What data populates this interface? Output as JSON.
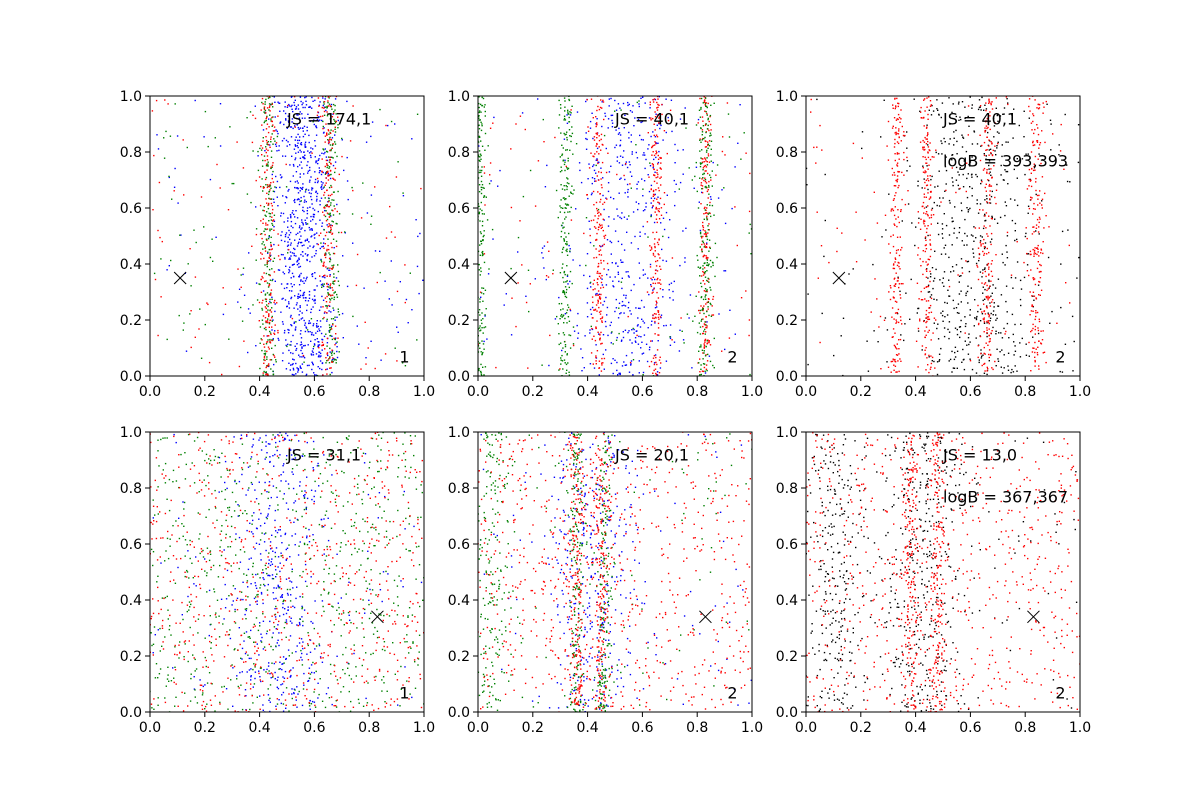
{
  "figure": {
    "axis_tick_labels": [
      "0.0",
      "0.2",
      "0.4",
      "0.6",
      "0.8",
      "1.0"
    ]
  },
  "chart_data": [
    {
      "type": "scatter",
      "xlim": [
        0,
        1
      ],
      "ylim": [
        0,
        1
      ],
      "xticks": [
        0,
        0.2,
        0.4,
        0.6,
        0.8,
        1.0
      ],
      "yticks": [
        0,
        0.2,
        0.4,
        0.6,
        0.8,
        1.0
      ],
      "grid": false,
      "annotations": [
        {
          "text": "JS = 174,1",
          "x": 0.5,
          "y": 0.92
        }
      ],
      "panel_label": {
        "text": "1",
        "x": 0.91,
        "y": 0.07
      },
      "marker_x": {
        "x": 0.11,
        "y": 0.35
      },
      "series": [
        {
          "color": "#0000ff",
          "density": "high",
          "bands": [
            {
              "center": 0.56,
              "width": 0.06
            }
          ]
        },
        {
          "color": "#008000",
          "bands": [
            {
              "center": 0.43,
              "width": 0.015
            },
            {
              "center": 0.66,
              "width": 0.015
            }
          ]
        },
        {
          "color": "#ff0000",
          "bands": [
            {
              "center": 0.43,
              "width": 0.015
            },
            {
              "center": 0.65,
              "width": 0.015
            }
          ]
        }
      ]
    },
    {
      "type": "scatter",
      "xlim": [
        0,
        1
      ],
      "ylim": [
        0,
        1
      ],
      "xticks": [
        0,
        0.2,
        0.4,
        0.6,
        0.8,
        1.0
      ],
      "yticks": [
        0,
        0.2,
        0.4,
        0.6,
        0.8,
        1.0
      ],
      "grid": false,
      "annotations": [
        {
          "text": "JS = 40,1",
          "x": 0.5,
          "y": 0.92
        }
      ],
      "panel_label": {
        "text": "2",
        "x": 0.91,
        "y": 0.07
      },
      "marker_x": {
        "x": 0.12,
        "y": 0.35
      },
      "series": [
        {
          "color": "#0000ff",
          "bands": [
            {
              "center": 0.55,
              "width": 0.1
            }
          ]
        },
        {
          "color": "#ff0000",
          "bands": [
            {
              "center": 0.44,
              "width": 0.012
            },
            {
              "center": 0.65,
              "width": 0.012
            },
            {
              "center": 0.83,
              "width": 0.01
            }
          ]
        },
        {
          "color": "#008000",
          "bands": [
            {
              "center": 0.01,
              "width": 0.01
            },
            {
              "center": 0.32,
              "width": 0.012
            },
            {
              "center": 0.83,
              "width": 0.015
            }
          ]
        }
      ]
    },
    {
      "type": "scatter",
      "xlim": [
        0,
        1
      ],
      "ylim": [
        0,
        1
      ],
      "xticks": [
        0,
        0.2,
        0.4,
        0.6,
        0.8,
        1.0
      ],
      "yticks": [
        0,
        0.2,
        0.4,
        0.6,
        0.8,
        1.0
      ],
      "grid": false,
      "annotations": [
        {
          "text": "JS = 40,1",
          "x": 0.5,
          "y": 0.92
        },
        {
          "text": "logB = 393,393",
          "x": 0.5,
          "y": 0.77
        }
      ],
      "panel_label": {
        "text": "2",
        "x": 0.91,
        "y": 0.07
      },
      "marker_x": {
        "x": 0.12,
        "y": 0.35
      },
      "series": [
        {
          "color": "#000000",
          "bands": [
            {
              "center": 0.62,
              "width": 0.12
            }
          ]
        },
        {
          "color": "#ff0000",
          "bands": [
            {
              "center": 0.33,
              "width": 0.012
            },
            {
              "center": 0.44,
              "width": 0.012
            },
            {
              "center": 0.66,
              "width": 0.015
            },
            {
              "center": 0.84,
              "width": 0.015
            }
          ]
        }
      ]
    },
    {
      "type": "scatter",
      "xlim": [
        0,
        1
      ],
      "ylim": [
        0,
        1
      ],
      "xticks": [
        0,
        0.2,
        0.4,
        0.6,
        0.8,
        1.0
      ],
      "yticks": [
        0,
        0.2,
        0.4,
        0.6,
        0.8,
        1.0
      ],
      "grid": false,
      "annotations": [
        {
          "text": "JS = 31,1",
          "x": 0.5,
          "y": 0.92
        }
      ],
      "panel_label": {
        "text": "1",
        "x": 0.91,
        "y": 0.07
      },
      "marker_x": {
        "x": 0.83,
        "y": 0.34
      },
      "series": [
        {
          "color": "#0000ff",
          "bands": [
            {
              "center": 0.47,
              "width": 0.09
            }
          ]
        },
        {
          "color": "#008000",
          "bands": [
            {
              "center": 0.5,
              "width": 0.35
            }
          ]
        },
        {
          "color": "#ff0000",
          "bands": [
            {
              "center": 0.5,
              "width": 0.35
            }
          ]
        }
      ]
    },
    {
      "type": "scatter",
      "xlim": [
        0,
        1
      ],
      "ylim": [
        0,
        1
      ],
      "xticks": [
        0,
        0.2,
        0.4,
        0.6,
        0.8,
        1.0
      ],
      "yticks": [
        0,
        0.2,
        0.4,
        0.6,
        0.8,
        1.0
      ],
      "grid": false,
      "annotations": [
        {
          "text": "JS = 20,1",
          "x": 0.5,
          "y": 0.92
        }
      ],
      "panel_label": {
        "text": "2",
        "x": 0.91,
        "y": 0.07
      },
      "marker_x": {
        "x": 0.83,
        "y": 0.34
      },
      "series": [
        {
          "color": "#0000ff",
          "bands": [
            {
              "center": 0.42,
              "width": 0.07
            }
          ]
        },
        {
          "color": "#008000",
          "bands": [
            {
              "center": 0.05,
              "width": 0.03
            },
            {
              "center": 0.36,
              "width": 0.015
            },
            {
              "center": 0.46,
              "width": 0.015
            }
          ]
        },
        {
          "color": "#ff0000",
          "bands": [
            {
              "center": 0.36,
              "width": 0.015
            },
            {
              "center": 0.45,
              "width": 0.015
            },
            {
              "center": 0.6,
              "width": 0.3
            }
          ]
        }
      ]
    },
    {
      "type": "scatter",
      "xlim": [
        0,
        1
      ],
      "ylim": [
        0,
        1
      ],
      "xticks": [
        0,
        0.2,
        0.4,
        0.6,
        0.8,
        1.0
      ],
      "yticks": [
        0,
        0.2,
        0.4,
        0.6,
        0.8,
        1.0
      ],
      "grid": false,
      "annotations": [
        {
          "text": "JS = 13,0",
          "x": 0.5,
          "y": 0.92
        },
        {
          "text": "logB = 367,367",
          "x": 0.5,
          "y": 0.77
        }
      ],
      "panel_label": {
        "text": "2",
        "x": 0.91,
        "y": 0.07
      },
      "marker_x": {
        "x": 0.83,
        "y": 0.34
      },
      "series": [
        {
          "color": "#000000",
          "bands": [
            {
              "center": 0.43,
              "width": 0.08
            },
            {
              "center": 0.1,
              "width": 0.06
            }
          ]
        },
        {
          "color": "#ff0000",
          "bands": [
            {
              "center": 0.38,
              "width": 0.015
            },
            {
              "center": 0.48,
              "width": 0.015
            },
            {
              "center": 0.5,
              "width": 0.35
            }
          ]
        }
      ]
    }
  ]
}
